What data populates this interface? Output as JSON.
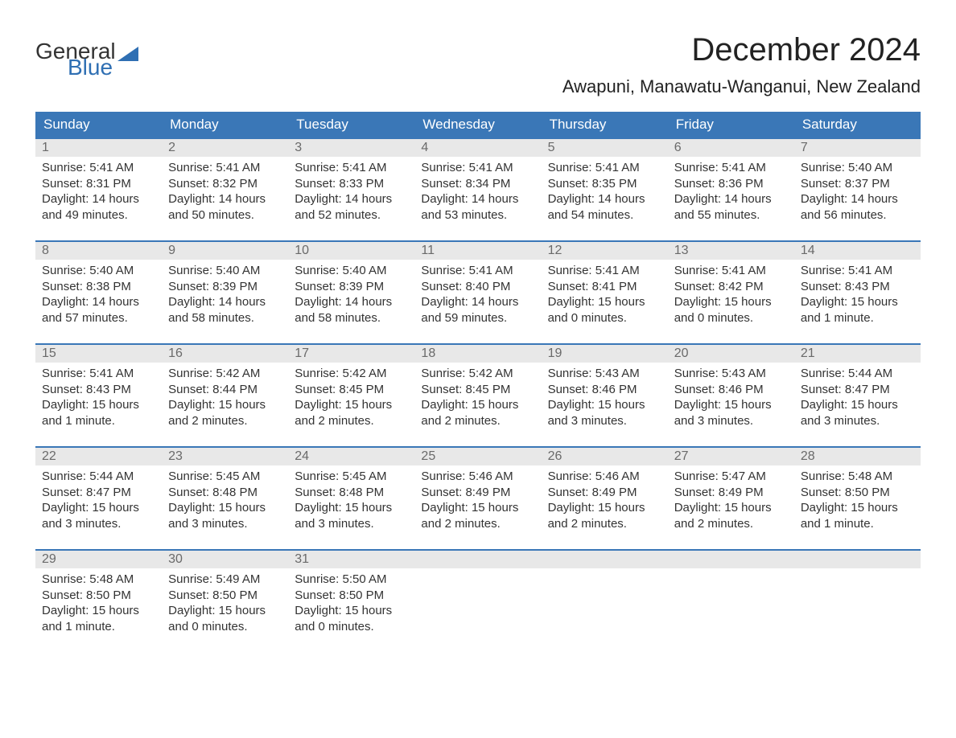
{
  "logo": {
    "text1": "General",
    "text2": "Blue"
  },
  "title": "December 2024",
  "location": "Awapuni, Manawatu-Wanganui, New Zealand",
  "colors": {
    "header_bg": "#3a77b7",
    "header_fg": "#ffffff",
    "daynum_bg": "#e8e8e8",
    "daynum_fg": "#6a6a6a",
    "text": "#333333",
    "accent": "#2f6fb3",
    "row_border": "#3a77b7"
  },
  "day_headers": [
    "Sunday",
    "Monday",
    "Tuesday",
    "Wednesday",
    "Thursday",
    "Friday",
    "Saturday"
  ],
  "weeks": [
    [
      {
        "n": "1",
        "sr": "Sunrise: 5:41 AM",
        "ss": "Sunset: 8:31 PM",
        "d1": "Daylight: 14 hours",
        "d2": "and 49 minutes."
      },
      {
        "n": "2",
        "sr": "Sunrise: 5:41 AM",
        "ss": "Sunset: 8:32 PM",
        "d1": "Daylight: 14 hours",
        "d2": "and 50 minutes."
      },
      {
        "n": "3",
        "sr": "Sunrise: 5:41 AM",
        "ss": "Sunset: 8:33 PM",
        "d1": "Daylight: 14 hours",
        "d2": "and 52 minutes."
      },
      {
        "n": "4",
        "sr": "Sunrise: 5:41 AM",
        "ss": "Sunset: 8:34 PM",
        "d1": "Daylight: 14 hours",
        "d2": "and 53 minutes."
      },
      {
        "n": "5",
        "sr": "Sunrise: 5:41 AM",
        "ss": "Sunset: 8:35 PM",
        "d1": "Daylight: 14 hours",
        "d2": "and 54 minutes."
      },
      {
        "n": "6",
        "sr": "Sunrise: 5:41 AM",
        "ss": "Sunset: 8:36 PM",
        "d1": "Daylight: 14 hours",
        "d2": "and 55 minutes."
      },
      {
        "n": "7",
        "sr": "Sunrise: 5:40 AM",
        "ss": "Sunset: 8:37 PM",
        "d1": "Daylight: 14 hours",
        "d2": "and 56 minutes."
      }
    ],
    [
      {
        "n": "8",
        "sr": "Sunrise: 5:40 AM",
        "ss": "Sunset: 8:38 PM",
        "d1": "Daylight: 14 hours",
        "d2": "and 57 minutes."
      },
      {
        "n": "9",
        "sr": "Sunrise: 5:40 AM",
        "ss": "Sunset: 8:39 PM",
        "d1": "Daylight: 14 hours",
        "d2": "and 58 minutes."
      },
      {
        "n": "10",
        "sr": "Sunrise: 5:40 AM",
        "ss": "Sunset: 8:39 PM",
        "d1": "Daylight: 14 hours",
        "d2": "and 58 minutes."
      },
      {
        "n": "11",
        "sr": "Sunrise: 5:41 AM",
        "ss": "Sunset: 8:40 PM",
        "d1": "Daylight: 14 hours",
        "d2": "and 59 minutes."
      },
      {
        "n": "12",
        "sr": "Sunrise: 5:41 AM",
        "ss": "Sunset: 8:41 PM",
        "d1": "Daylight: 15 hours",
        "d2": "and 0 minutes."
      },
      {
        "n": "13",
        "sr": "Sunrise: 5:41 AM",
        "ss": "Sunset: 8:42 PM",
        "d1": "Daylight: 15 hours",
        "d2": "and 0 minutes."
      },
      {
        "n": "14",
        "sr": "Sunrise: 5:41 AM",
        "ss": "Sunset: 8:43 PM",
        "d1": "Daylight: 15 hours",
        "d2": "and 1 minute."
      }
    ],
    [
      {
        "n": "15",
        "sr": "Sunrise: 5:41 AM",
        "ss": "Sunset: 8:43 PM",
        "d1": "Daylight: 15 hours",
        "d2": "and 1 minute."
      },
      {
        "n": "16",
        "sr": "Sunrise: 5:42 AM",
        "ss": "Sunset: 8:44 PM",
        "d1": "Daylight: 15 hours",
        "d2": "and 2 minutes."
      },
      {
        "n": "17",
        "sr": "Sunrise: 5:42 AM",
        "ss": "Sunset: 8:45 PM",
        "d1": "Daylight: 15 hours",
        "d2": "and 2 minutes."
      },
      {
        "n": "18",
        "sr": "Sunrise: 5:42 AM",
        "ss": "Sunset: 8:45 PM",
        "d1": "Daylight: 15 hours",
        "d2": "and 2 minutes."
      },
      {
        "n": "19",
        "sr": "Sunrise: 5:43 AM",
        "ss": "Sunset: 8:46 PM",
        "d1": "Daylight: 15 hours",
        "d2": "and 3 minutes."
      },
      {
        "n": "20",
        "sr": "Sunrise: 5:43 AM",
        "ss": "Sunset: 8:46 PM",
        "d1": "Daylight: 15 hours",
        "d2": "and 3 minutes."
      },
      {
        "n": "21",
        "sr": "Sunrise: 5:44 AM",
        "ss": "Sunset: 8:47 PM",
        "d1": "Daylight: 15 hours",
        "d2": "and 3 minutes."
      }
    ],
    [
      {
        "n": "22",
        "sr": "Sunrise: 5:44 AM",
        "ss": "Sunset: 8:47 PM",
        "d1": "Daylight: 15 hours",
        "d2": "and 3 minutes."
      },
      {
        "n": "23",
        "sr": "Sunrise: 5:45 AM",
        "ss": "Sunset: 8:48 PM",
        "d1": "Daylight: 15 hours",
        "d2": "and 3 minutes."
      },
      {
        "n": "24",
        "sr": "Sunrise: 5:45 AM",
        "ss": "Sunset: 8:48 PM",
        "d1": "Daylight: 15 hours",
        "d2": "and 3 minutes."
      },
      {
        "n": "25",
        "sr": "Sunrise: 5:46 AM",
        "ss": "Sunset: 8:49 PM",
        "d1": "Daylight: 15 hours",
        "d2": "and 2 minutes."
      },
      {
        "n": "26",
        "sr": "Sunrise: 5:46 AM",
        "ss": "Sunset: 8:49 PM",
        "d1": "Daylight: 15 hours",
        "d2": "and 2 minutes."
      },
      {
        "n": "27",
        "sr": "Sunrise: 5:47 AM",
        "ss": "Sunset: 8:49 PM",
        "d1": "Daylight: 15 hours",
        "d2": "and 2 minutes."
      },
      {
        "n": "28",
        "sr": "Sunrise: 5:48 AM",
        "ss": "Sunset: 8:50 PM",
        "d1": "Daylight: 15 hours",
        "d2": "and 1 minute."
      }
    ],
    [
      {
        "n": "29",
        "sr": "Sunrise: 5:48 AM",
        "ss": "Sunset: 8:50 PM",
        "d1": "Daylight: 15 hours",
        "d2": "and 1 minute."
      },
      {
        "n": "30",
        "sr": "Sunrise: 5:49 AM",
        "ss": "Sunset: 8:50 PM",
        "d1": "Daylight: 15 hours",
        "d2": "and 0 minutes."
      },
      {
        "n": "31",
        "sr": "Sunrise: 5:50 AM",
        "ss": "Sunset: 8:50 PM",
        "d1": "Daylight: 15 hours",
        "d2": "and 0 minutes."
      },
      null,
      null,
      null,
      null
    ]
  ]
}
